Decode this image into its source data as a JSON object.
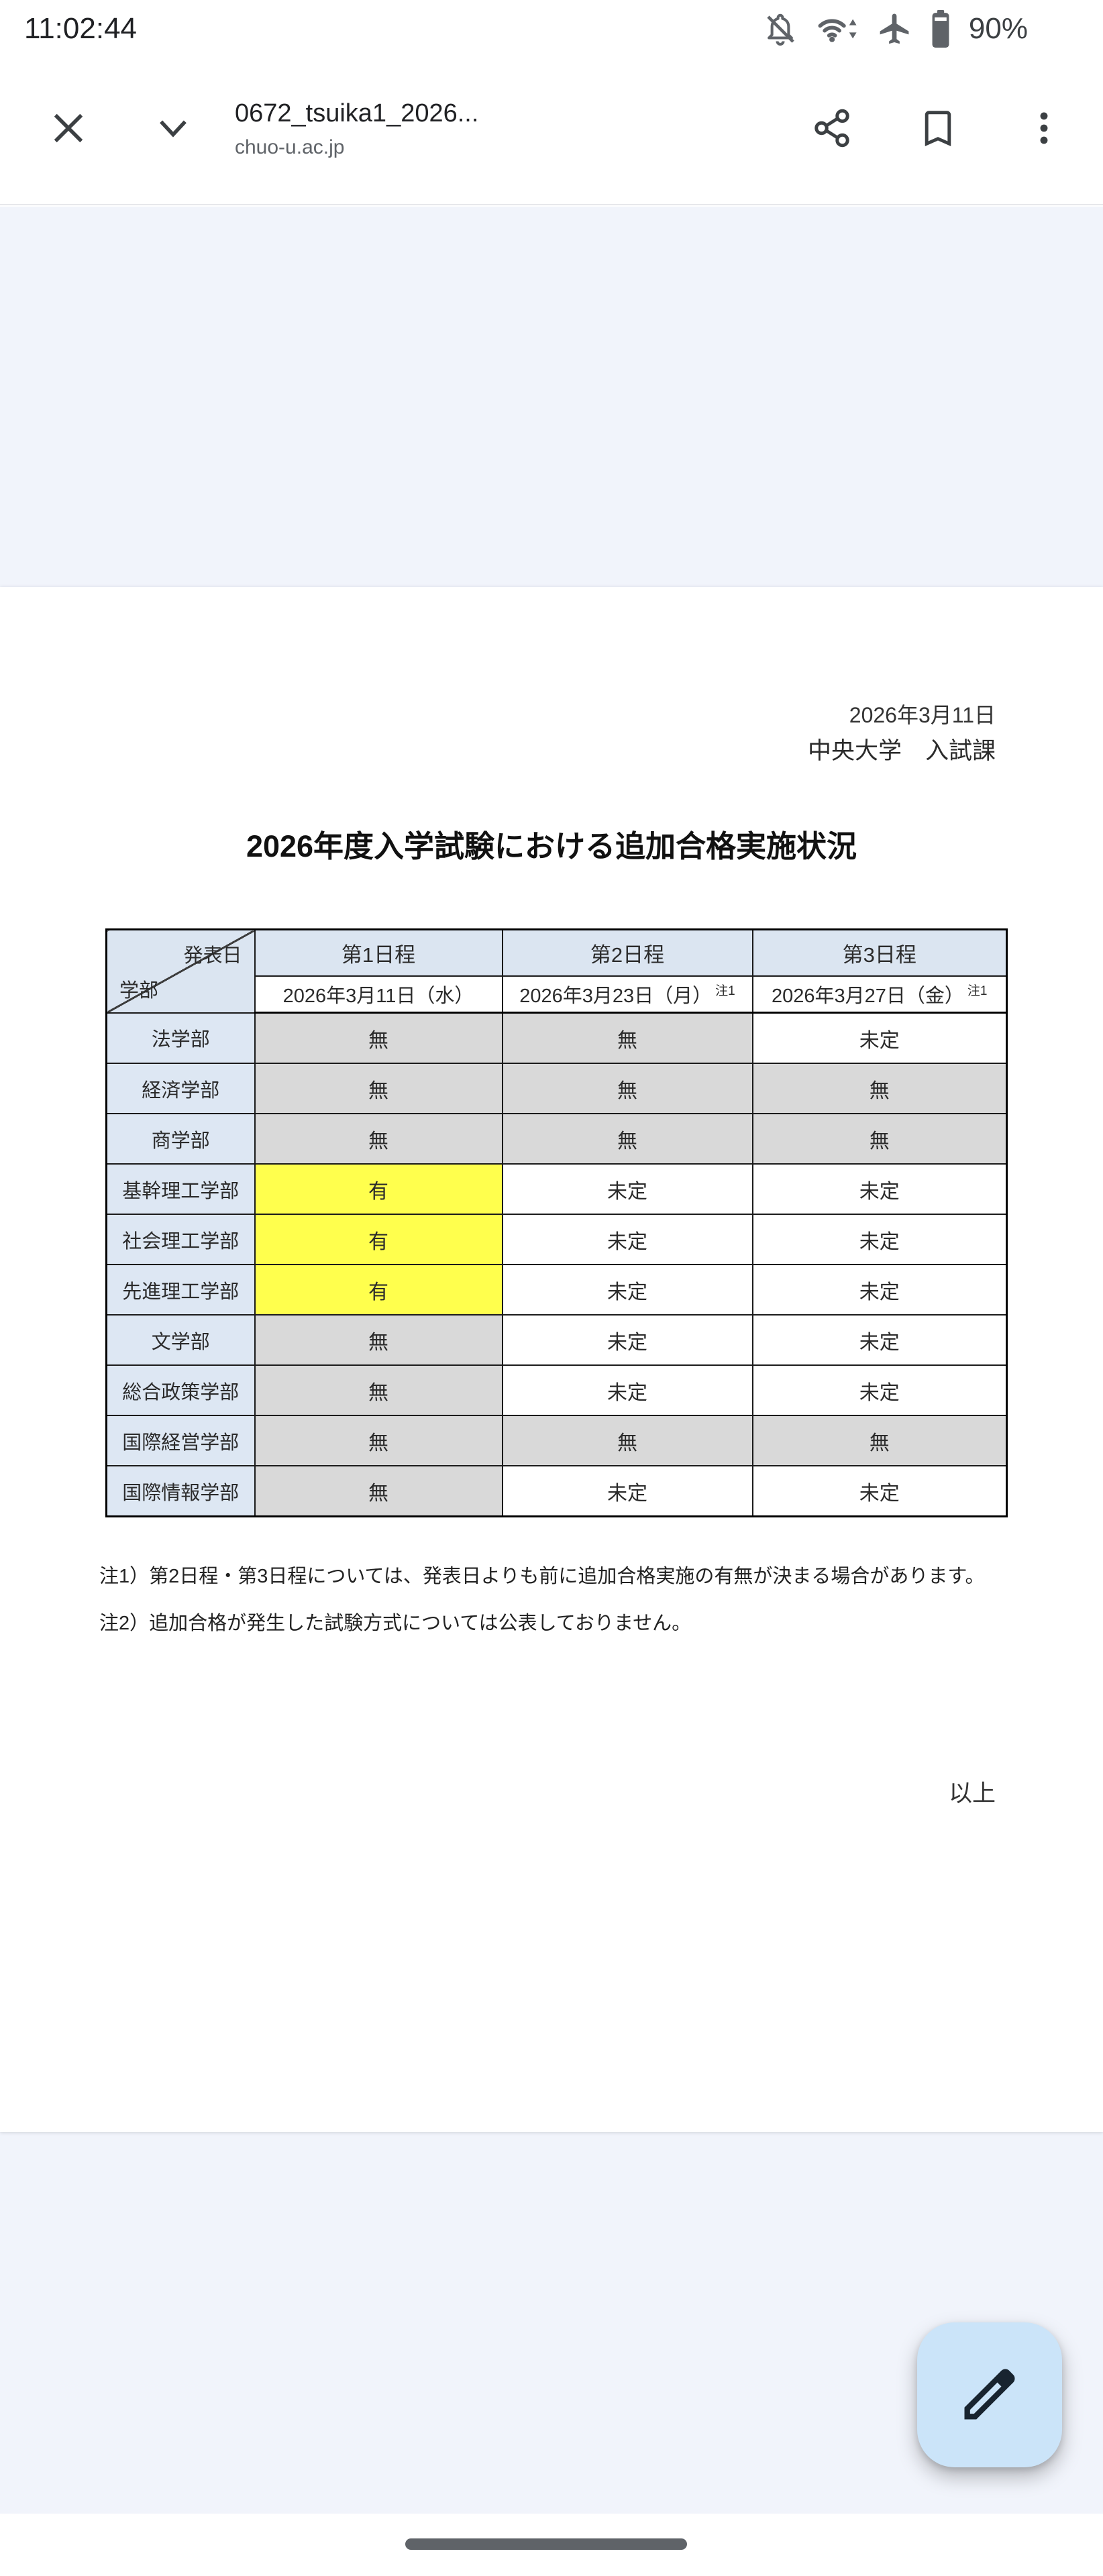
{
  "status_bar": {
    "time": "11:02:44",
    "battery_percent": "90%",
    "icons": [
      "notifications-off-icon",
      "wifi-icon",
      "airplane-mode-icon",
      "battery-icon"
    ]
  },
  "app_bar": {
    "title": "0672_tsuika1_2026...",
    "subtitle": "chuo-u.ac.jp",
    "icons": [
      "close-icon",
      "chevron-down-icon",
      "share-icon",
      "bookmark-icon",
      "overflow-menu-icon"
    ]
  },
  "document": {
    "date": "2026年3月11日",
    "issuer": "中央大学　入試課",
    "title": "2026年度入学試験における追加合格実施状況",
    "table": {
      "corner": {
        "top_right": "発表日",
        "bottom_left": "学部"
      },
      "schedules": [
        {
          "label": "第1日程",
          "date": "2026年3月11日（水）",
          "note_ref": ""
        },
        {
          "label": "第2日程",
          "date": "2026年3月23日（月）",
          "note_ref": "注1"
        },
        {
          "label": "第3日程",
          "date": "2026年3月27日（金）",
          "note_ref": "注1"
        }
      ],
      "rows": [
        {
          "faculty": "法学部",
          "cells": [
            {
              "text": "無",
              "bg": "gray"
            },
            {
              "text": "無",
              "bg": "gray"
            },
            {
              "text": "未定",
              "bg": "white"
            }
          ]
        },
        {
          "faculty": "経済学部",
          "cells": [
            {
              "text": "無",
              "bg": "gray"
            },
            {
              "text": "無",
              "bg": "gray"
            },
            {
              "text": "無",
              "bg": "gray"
            }
          ]
        },
        {
          "faculty": "商学部",
          "cells": [
            {
              "text": "無",
              "bg": "gray"
            },
            {
              "text": "無",
              "bg": "gray"
            },
            {
              "text": "無",
              "bg": "gray"
            }
          ]
        },
        {
          "faculty": "基幹理工学部",
          "cells": [
            {
              "text": "有",
              "bg": "yellow"
            },
            {
              "text": "未定",
              "bg": "white"
            },
            {
              "text": "未定",
              "bg": "white"
            }
          ]
        },
        {
          "faculty": "社会理工学部",
          "cells": [
            {
              "text": "有",
              "bg": "yellow"
            },
            {
              "text": "未定",
              "bg": "white"
            },
            {
              "text": "未定",
              "bg": "white"
            }
          ]
        },
        {
          "faculty": "先進理工学部",
          "cells": [
            {
              "text": "有",
              "bg": "yellow"
            },
            {
              "text": "未定",
              "bg": "white"
            },
            {
              "text": "未定",
              "bg": "white"
            }
          ]
        },
        {
          "faculty": "文学部",
          "cells": [
            {
              "text": "無",
              "bg": "gray"
            },
            {
              "text": "未定",
              "bg": "white"
            },
            {
              "text": "未定",
              "bg": "white"
            }
          ]
        },
        {
          "faculty": "総合政策学部",
          "cells": [
            {
              "text": "無",
              "bg": "gray"
            },
            {
              "text": "未定",
              "bg": "white"
            },
            {
              "text": "未定",
              "bg": "white"
            }
          ]
        },
        {
          "faculty": "国際経営学部",
          "cells": [
            {
              "text": "無",
              "bg": "gray"
            },
            {
              "text": "無",
              "bg": "gray"
            },
            {
              "text": "無",
              "bg": "gray"
            }
          ]
        },
        {
          "faculty": "国際情報学部",
          "cells": [
            {
              "text": "無",
              "bg": "gray"
            },
            {
              "text": "未定",
              "bg": "white"
            },
            {
              "text": "未定",
              "bg": "white"
            }
          ]
        }
      ]
    },
    "notes": [
      "注1）第2日程・第3日程については、発表日よりも前に追加合格実施の有無が決まる場合があります。",
      "注2）追加合格が発生した試験方式については公表しておりません。"
    ],
    "closing": "以上"
  },
  "fab": {
    "icon": "edit-pencil-icon"
  },
  "nav": {
    "control": "home-indicator"
  },
  "colors": {
    "viewer_background": "#f1f4fb",
    "table_header_blue": "#dbe5f1",
    "cell_gray": "#d9d9d9",
    "cell_yellow": "#ffff4d",
    "fab_background": "#cbe4f9",
    "status_icon_gray": "#5f6368"
  }
}
